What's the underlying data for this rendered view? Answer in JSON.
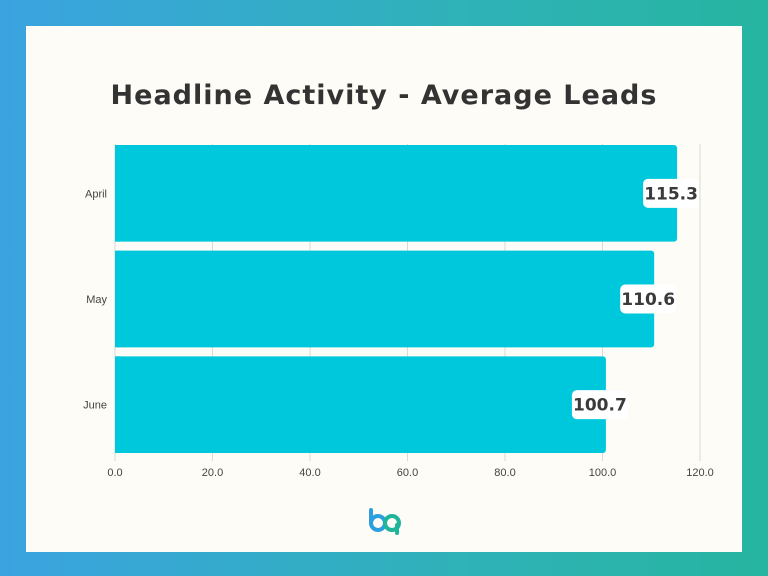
{
  "title": "Headline Activity - Average Leads",
  "colors": {
    "bar": "#00c8dc",
    "grid": "#d9d9d9",
    "axis_text": "#444444",
    "label_text": "#3a3a3a",
    "logo_blue": "#2b9fe0",
    "logo_teal": "#1fb59a"
  },
  "logo": {
    "icon": "bp-logo-icon"
  },
  "chart_data": {
    "type": "bar",
    "orientation": "horizontal",
    "categories": [
      "April",
      "May",
      "June"
    ],
    "values": [
      115.3,
      110.6,
      100.7
    ],
    "data_labels": [
      "115.3",
      "110.6",
      "100.7"
    ],
    "title": "Headline Activity - Average Leads",
    "xlabel": "",
    "ylabel": "",
    "xlim": [
      0,
      120
    ],
    "x_ticks": [
      "0.0",
      "20.0",
      "40.0",
      "60.0",
      "80.0",
      "100.0",
      "120.0"
    ],
    "grid": true,
    "legend": "none"
  }
}
